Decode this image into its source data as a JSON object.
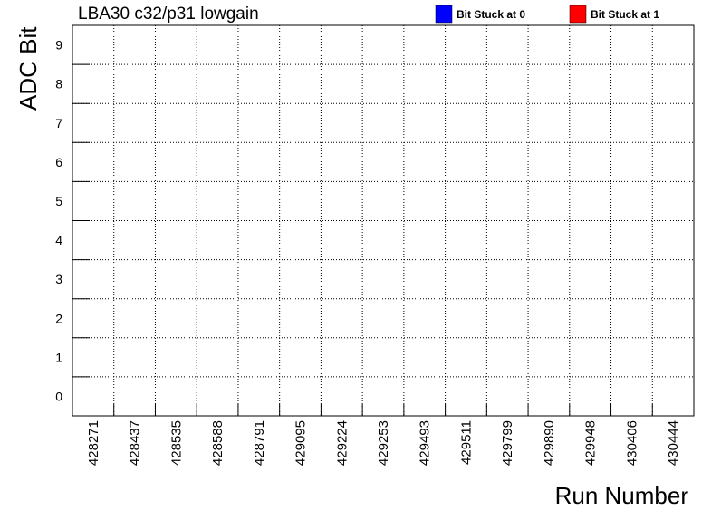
{
  "chart_data": {
    "type": "heatmap",
    "title": "LBA30 c32/p31 lowgain",
    "xlabel": "Run Number",
    "ylabel": "ADC Bit",
    "categories": [
      "428271",
      "428437",
      "428535",
      "428588",
      "428791",
      "429095",
      "429224",
      "429253",
      "429493",
      "429511",
      "429799",
      "429890",
      "429948",
      "430406",
      "430444"
    ],
    "y_values": [
      0,
      1,
      2,
      3,
      4,
      5,
      6,
      7,
      8,
      9
    ],
    "ylim": [
      0,
      10
    ],
    "grid": true,
    "legend": [
      {
        "name": "Bit Stuck at 0",
        "color": "#0000ff"
      },
      {
        "name": "Bit Stuck at 1",
        "color": "#ff0000"
      }
    ],
    "legend_position": "top-right",
    "cells": []
  }
}
